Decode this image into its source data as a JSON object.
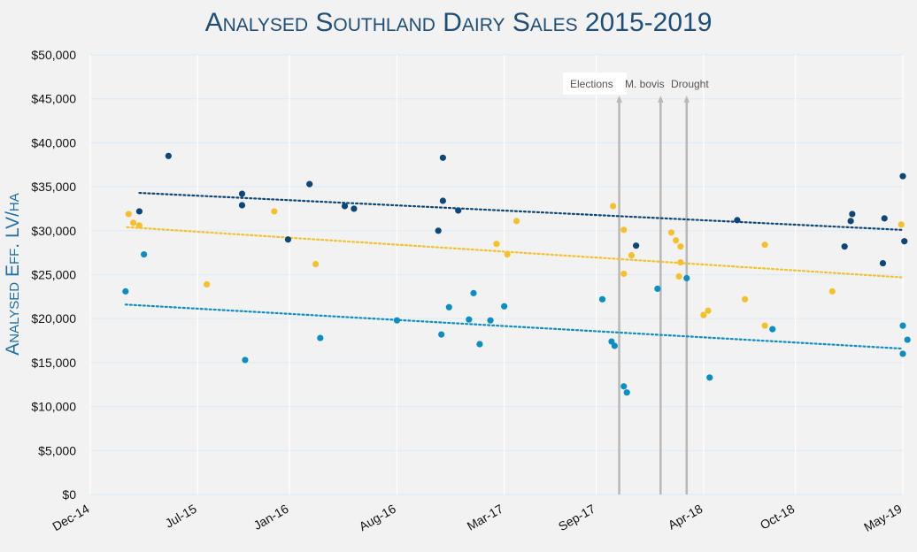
{
  "chart_data": {
    "type": "scatter",
    "title": "Analysed Southland Dairy Sales 2015-2019",
    "xlabel": "",
    "ylabel": "Analysed Eff. LV/ha",
    "ylim": [
      0,
      50000
    ],
    "yticks": [
      0,
      5000,
      10000,
      15000,
      20000,
      25000,
      30000,
      35000,
      40000,
      45000,
      50000
    ],
    "ytick_labels": [
      "$0",
      "$5,000",
      "$10,000",
      "$15,000",
      "$20,000",
      "$25,000",
      "$30,000",
      "$35,000",
      "$40,000",
      "$45,000",
      "$50,000"
    ],
    "xlim": [
      0,
      53
    ],
    "xticks": [
      0,
      7,
      13,
      20,
      27,
      33,
      40,
      46,
      53
    ],
    "xtick_labels": [
      "Dec-14",
      "Jul-15",
      "Jan-16",
      "Aug-16",
      "Mar-17",
      "Sep-17",
      "Apr-18",
      "Oct-18",
      "May-19"
    ],
    "x_unit": "months since Dec-14",
    "grid": true,
    "series": [
      {
        "name": "Dark blue",
        "color": "#0d4678",
        "trend": [
          [
            3.2,
            34300
          ],
          [
            52.9,
            30100
          ]
        ],
        "points": [
          [
            3.2,
            32200
          ],
          [
            5.1,
            38500
          ],
          [
            9.9,
            34200
          ],
          [
            9.9,
            32900
          ],
          [
            12.9,
            29000
          ],
          [
            14.3,
            35300
          ],
          [
            16.6,
            32800
          ],
          [
            17.2,
            32500
          ],
          [
            22.7,
            30000
          ],
          [
            23.0,
            38300
          ],
          [
            23.0,
            33400
          ],
          [
            24.0,
            32300
          ],
          [
            35.6,
            28300
          ],
          [
            42.2,
            31200
          ],
          [
            49.2,
            28200
          ],
          [
            49.6,
            31100
          ],
          [
            49.7,
            31900
          ],
          [
            51.7,
            26300
          ],
          [
            51.8,
            31400
          ],
          [
            53.0,
            36200
          ],
          [
            53.1,
            28800
          ]
        ]
      },
      {
        "name": "Yellow",
        "color": "#f5c02e",
        "trend": [
          [
            2.4,
            30400
          ],
          [
            52.9,
            24700
          ]
        ],
        "points": [
          [
            2.5,
            31900
          ],
          [
            2.8,
            30900
          ],
          [
            3.2,
            30600
          ],
          [
            7.6,
            23900
          ],
          [
            12.0,
            32200
          ],
          [
            14.7,
            26200
          ],
          [
            26.5,
            28500
          ],
          [
            27.2,
            27300
          ],
          [
            27.8,
            31100
          ],
          [
            34.1,
            32800
          ],
          [
            34.8,
            30100
          ],
          [
            34.8,
            25100
          ],
          [
            35.3,
            27200
          ],
          [
            37.9,
            29800
          ],
          [
            38.2,
            28900
          ],
          [
            38.4,
            24800
          ],
          [
            38.5,
            28200
          ],
          [
            38.5,
            26400
          ],
          [
            40.0,
            20400
          ],
          [
            40.3,
            20900
          ],
          [
            42.7,
            22200
          ],
          [
            44.0,
            28400
          ],
          [
            44.0,
            19200
          ],
          [
            48.4,
            23100
          ],
          [
            52.9,
            30700
          ]
        ]
      },
      {
        "name": "Light blue",
        "color": "#0b8ec4",
        "trend": [
          [
            2.3,
            21600
          ],
          [
            52.9,
            16600
          ]
        ],
        "points": [
          [
            2.3,
            23100
          ],
          [
            3.5,
            27300
          ],
          [
            10.1,
            15300
          ],
          [
            15.0,
            17800
          ],
          [
            20.0,
            19800
          ],
          [
            22.9,
            18200
          ],
          [
            24.7,
            19900
          ],
          [
            23.4,
            21300
          ],
          [
            25.0,
            22900
          ],
          [
            26.1,
            19800
          ],
          [
            25.4,
            17100
          ],
          [
            27.0,
            21400
          ],
          [
            33.4,
            22200
          ],
          [
            34.0,
            17400
          ],
          [
            34.2,
            16900
          ],
          [
            34.8,
            12300
          ],
          [
            35.0,
            11600
          ],
          [
            37.0,
            23400
          ],
          [
            38.9,
            24600
          ],
          [
            40.4,
            13300
          ],
          [
            44.5,
            18800
          ],
          [
            53.0,
            19200
          ],
          [
            53.0,
            16000
          ],
          [
            53.3,
            17600
          ]
        ]
      }
    ],
    "annotations": [
      {
        "label": "Elections",
        "x": 34.5
      },
      {
        "label": "M. bovis",
        "x": 37.2
      },
      {
        "label": "Drought",
        "x": 38.9
      }
    ]
  }
}
